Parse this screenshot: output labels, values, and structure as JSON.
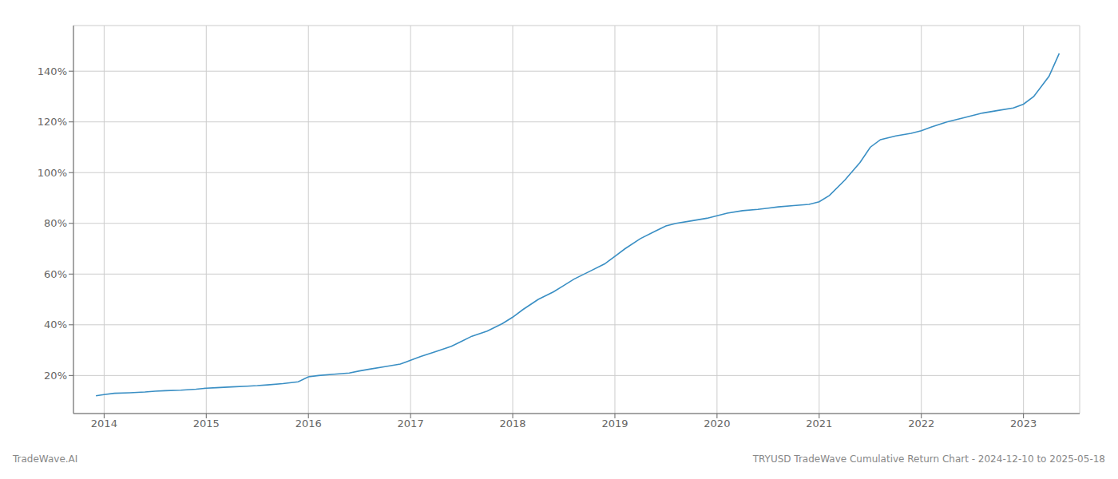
{
  "chart_data": {
    "type": "line",
    "title": "TRYUSD TradeWave Cumulative Return Chart - 2024-12-10 to 2025-05-18",
    "annotations": [
      "TradeWave.AI"
    ],
    "color": "#3a8fc4",
    "grid": true,
    "xlim": [
      2013.7,
      2023.55
    ],
    "ylim": [
      5,
      158
    ],
    "xticks": [
      2014,
      2015,
      2016,
      2017,
      2018,
      2019,
      2020,
      2021,
      2022,
      2023
    ],
    "yticks": [
      {
        "value": 20,
        "label": "20%"
      },
      {
        "value": 40,
        "label": "40%"
      },
      {
        "value": 60,
        "label": "60%"
      },
      {
        "value": 80,
        "label": "80%"
      },
      {
        "value": 100,
        "label": "100%"
      },
      {
        "value": 120,
        "label": "120%"
      },
      {
        "value": 140,
        "label": "140%"
      }
    ],
    "x": [
      2013.92,
      2014.0,
      2014.1,
      2014.25,
      2014.4,
      2014.5,
      2014.6,
      2014.75,
      2014.9,
      2015.0,
      2015.1,
      2015.25,
      2015.4,
      2015.5,
      2015.6,
      2015.75,
      2015.9,
      2016.0,
      2016.1,
      2016.25,
      2016.4,
      2016.5,
      2016.6,
      2016.75,
      2016.9,
      2017.0,
      2017.1,
      2017.25,
      2017.4,
      2017.5,
      2017.6,
      2017.75,
      2017.9,
      2018.0,
      2018.1,
      2018.25,
      2018.4,
      2018.5,
      2018.6,
      2018.75,
      2018.9,
      2019.0,
      2019.1,
      2019.25,
      2019.4,
      2019.5,
      2019.6,
      2019.75,
      2019.9,
      2020.0,
      2020.1,
      2020.25,
      2020.4,
      2020.5,
      2020.6,
      2020.75,
      2020.9,
      2021.0,
      2021.1,
      2021.25,
      2021.4,
      2021.5,
      2021.6,
      2021.75,
      2021.9,
      2022.0,
      2022.1,
      2022.25,
      2022.4,
      2022.5,
      2022.6,
      2022.75,
      2022.9,
      2023.0,
      2023.1,
      2023.25,
      2023.35
    ],
    "values": [
      12,
      12.5,
      13,
      13.2,
      13.5,
      13.8,
      14.0,
      14.2,
      14.6,
      15.0,
      15.2,
      15.5,
      15.8,
      16.0,
      16.3,
      16.8,
      17.5,
      19.5,
      20.0,
      20.5,
      21.0,
      21.8,
      22.5,
      23.5,
      24.5,
      26.0,
      27.5,
      29.5,
      31.5,
      33.5,
      35.5,
      37.5,
      40.5,
      43.0,
      46.0,
      50.0,
      53.0,
      55.5,
      58.0,
      61.0,
      64.0,
      67.0,
      70.0,
      74.0,
      77.0,
      79.0,
      80.0,
      81.0,
      82.0,
      83.0,
      84.0,
      85.0,
      85.5,
      86.0,
      86.5,
      87.0,
      87.5,
      88.5,
      91.0,
      97.0,
      104.0,
      110.0,
      113.0,
      114.5,
      115.5,
      116.5,
      118.0,
      120.0,
      121.5,
      122.5,
      123.5,
      124.5,
      125.5,
      127.0,
      130.0,
      138.0,
      147.0
    ]
  }
}
